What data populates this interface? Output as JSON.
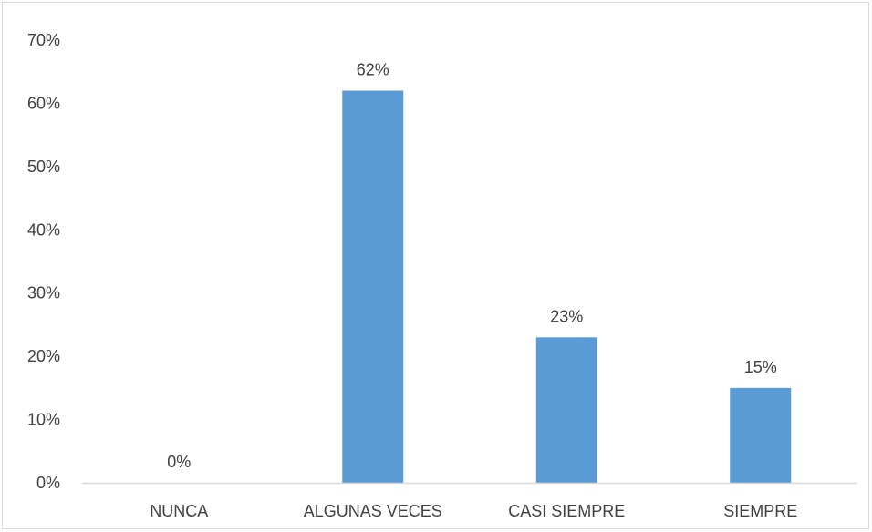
{
  "chart_data": {
    "type": "bar",
    "title": "",
    "xlabel": "",
    "ylabel": "",
    "categories": [
      "NUNCA",
      "ALGUNAS VECES",
      "CASI SIEMPRE",
      "SIEMPRE"
    ],
    "values": [
      0,
      62,
      23,
      15
    ],
    "data_labels": [
      "0%",
      "62%",
      "23%",
      "15%"
    ],
    "ylim": [
      0,
      70
    ],
    "yticks": [
      0,
      10,
      20,
      30,
      40,
      50,
      60,
      70
    ],
    "ytick_labels": [
      "0%",
      "10%",
      "20%",
      "30%",
      "40%",
      "50%",
      "60%",
      "70%"
    ],
    "grid": false,
    "legend": "none",
    "bar_color": "#5b9bd5",
    "axis_color": "#d9d9d9",
    "text_color": "#404040"
  }
}
